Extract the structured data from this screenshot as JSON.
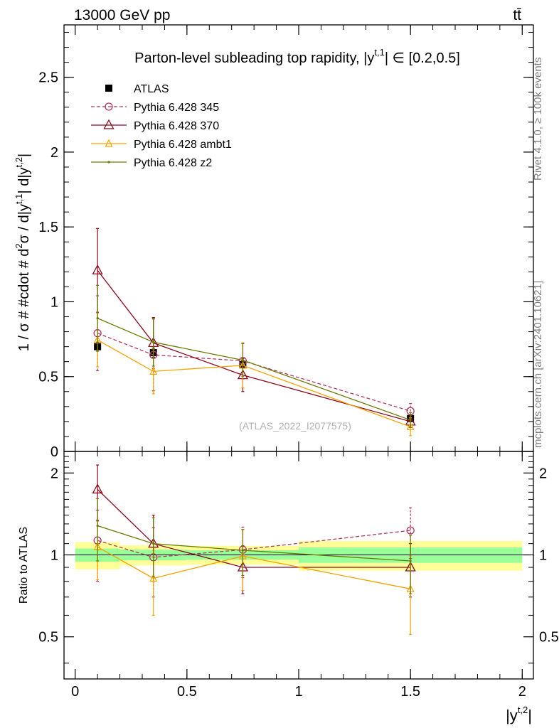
{
  "header": {
    "energy_label": "13000 GeV pp",
    "process_label": "tt̄"
  },
  "side": {
    "rivet_label": "Rivet 4.1.0, ≥ 100k events",
    "source_label": "mcplots.cern.ch [arXiv:2401.10621]"
  },
  "colors": {
    "atlas": "#000000",
    "p345": "#b03a5b",
    "p370": "#8b0a1e",
    "ambt1": "#f5a300",
    "z2": "#6b7a00",
    "band_inner": "#99ff99",
    "band_outer": "#ffff99"
  },
  "chart_data": [
    {
      "type": "line",
      "title": "Parton-level subleading top rapidity, |y^{t,1}| ∈ [0.2,0.5]",
      "title_main": "Parton-level subleading top rapidity, |y",
      "title_sup": "t,1",
      "title_tail": "| ∈ [0.2,0.5]",
      "ylabel": "1 / σ # #cdot # d²σ / d|y^{t,1}| d|y^{t,2}|",
      "ylabel_main": "1 / σ # #cdot # d",
      "ylabel_parts": [
        "2",
        "σ / d|y",
        "t,1",
        "| d|y",
        "t,2",
        "|"
      ],
      "watermark": "(ATLAS_2022_I2077575)",
      "xlim": [
        -0.05,
        2.05
      ],
      "ylim": [
        0,
        2.85
      ],
      "yticks": [
        0,
        0.5,
        1,
        1.5,
        2,
        2.5
      ],
      "ytick_labels": [
        "0",
        "0.5",
        "1",
        "1.5",
        "2",
        "2.5"
      ],
      "legend_position": "top-left",
      "x": [
        0.1,
        0.35,
        0.75,
        1.5
      ],
      "bin_edges": [
        0,
        0.2,
        0.5,
        1.0,
        2.0
      ],
      "series": [
        {
          "name": "ATLAS",
          "key": "atlas",
          "marker": "square",
          "values": [
            0.7,
            0.66,
            0.58,
            0.22
          ],
          "errors": [
            0.03,
            0.03,
            0.02,
            0.015
          ]
        },
        {
          "name": "Pythia 6.428 345",
          "key": "p345",
          "marker": "circle",
          "dashed": true,
          "values": [
            0.79,
            0.645,
            0.605,
            0.27
          ],
          "errors": [
            0.25,
            0.24,
            0.12,
            0.05
          ]
        },
        {
          "name": "Pythia 6.428 370",
          "key": "p370",
          "marker": "triangle",
          "values": [
            1.21,
            0.725,
            0.51,
            0.2
          ],
          "errors": [
            0.28,
            0.17,
            0.11,
            0.04
          ]
        },
        {
          "name": "Pythia 6.428 ambt1",
          "key": "ambt1",
          "marker": "triangle-small",
          "values": [
            0.745,
            0.535,
            0.575,
            0.165
          ],
          "errors": [
            0.18,
            0.15,
            0.15,
            0.06
          ]
        },
        {
          "name": "Pythia 6.428 z2",
          "key": "z2",
          "marker": "dot",
          "values": [
            0.89,
            0.73,
            0.61,
            0.21
          ],
          "errors": [
            0.22,
            0.16,
            0.11,
            0.05
          ]
        }
      ]
    },
    {
      "type": "line",
      "ylabel": "Ratio to ATLAS",
      "xlabel": "|y^{t,2}|",
      "xlabel_main": "|y",
      "xlabel_sup": "t,2",
      "xlabel_tail": "|",
      "xlim": [
        -0.05,
        2.05
      ],
      "ylim": [
        0.35,
        2.4
      ],
      "yscale": "log",
      "yticks": [
        0.5,
        1,
        2
      ],
      "ytick_labels": [
        "0.5",
        "1",
        "2"
      ],
      "xticks": [
        0,
        0.5,
        1,
        1.5,
        2
      ],
      "xtick_labels": [
        "0",
        "0.5",
        "1",
        "1.5",
        "2"
      ],
      "reference": 1,
      "bands": [
        {
          "x0": 0.0,
          "x1": 0.2,
          "inner": [
            0.945,
            1.055
          ],
          "outer": [
            0.885,
            1.115
          ]
        },
        {
          "x0": 0.2,
          "x1": 0.5,
          "inner": [
            0.955,
            1.045
          ],
          "outer": [
            0.915,
            1.085
          ]
        },
        {
          "x0": 0.5,
          "x1": 1.0,
          "inner": [
            0.96,
            1.04
          ],
          "outer": [
            0.92,
            1.08
          ]
        },
        {
          "x0": 1.0,
          "x1": 2.0,
          "inner": [
            0.935,
            1.065
          ],
          "outer": [
            0.875,
            1.125
          ]
        }
      ],
      "x": [
        0.1,
        0.35,
        0.75,
        1.5
      ],
      "series": [
        {
          "name": "Pythia 6.428 345",
          "key": "p345",
          "marker": "circle",
          "dashed": true,
          "values": [
            1.13,
            0.98,
            1.045,
            1.23
          ],
          "errors": [
            0.33,
            0.28,
            0.22,
            0.26
          ]
        },
        {
          "name": "Pythia 6.428 370",
          "key": "p370",
          "marker": "triangle",
          "values": [
            1.74,
            1.1,
            0.9,
            0.9
          ],
          "errors": [
            0.4,
            0.3,
            0.18,
            0.2
          ]
        },
        {
          "name": "Pythia 6.428 ambt1",
          "key": "ambt1",
          "marker": "triangle-small",
          "values": [
            1.07,
            0.82,
            0.99,
            0.75
          ],
          "errors": [
            0.26,
            0.22,
            0.25,
            0.24
          ]
        },
        {
          "name": "Pythia 6.428 z2",
          "key": "z2",
          "marker": "dot",
          "values": [
            1.28,
            1.1,
            1.04,
            0.95
          ],
          "errors": [
            0.33,
            0.27,
            0.2,
            0.23
          ]
        }
      ]
    }
  ]
}
